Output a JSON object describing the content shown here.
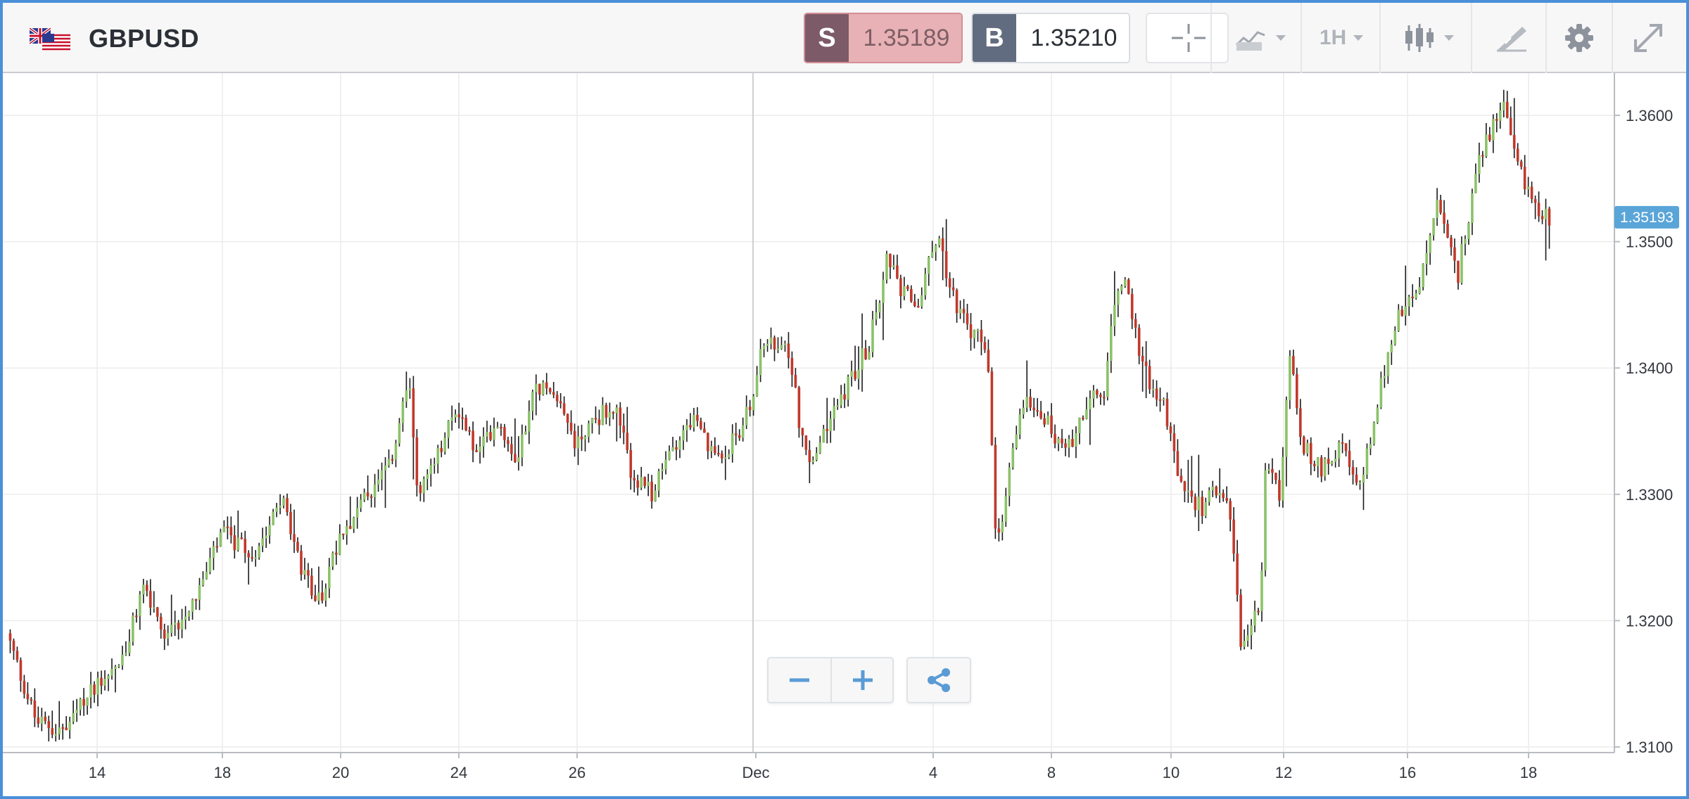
{
  "header": {
    "symbol": "GBPUSD",
    "flag_icon": "uk-us-flag-icon",
    "sell": {
      "letter": "S",
      "price": "1.35189"
    },
    "buy": {
      "letter": "B",
      "price": "1.35210"
    },
    "timeframe": "1H",
    "icons": [
      "crosshair-icon",
      "line-chart-type-icon",
      "candlestick-icon",
      "draw-tools-icon",
      "gear-icon",
      "fullscreen-icon"
    ]
  },
  "controls": {
    "icons": [
      "zoom-out-icon",
      "zoom-in-icon",
      "share-icon"
    ]
  },
  "colors": {
    "up": "#8cc26a",
    "down": "#c0392b",
    "wick": "#1a1a1a",
    "current_price_bg": "#5aa5d8",
    "grid": "#ececec"
  },
  "chart_data": {
    "type": "candlestick",
    "series_name": "GBPUSD",
    "interval": "1H",
    "current_price": "1.35193",
    "ylim": [
      1.31,
      1.363
    ],
    "y_ticks": [
      "1.3100",
      "1.3200",
      "1.3300",
      "1.3400",
      "1.3500",
      "1.3600"
    ],
    "x_ticks": [
      "14",
      "18",
      "20",
      "24",
      "26",
      "Dec",
      "4",
      "8",
      "10",
      "12",
      "16",
      "18"
    ],
    "grid": true,
    "legend": "none",
    "price_path": [
      {
        "t": 0,
        "p": 1.319
      },
      {
        "t": 1.5,
        "p": 1.312
      },
      {
        "t": 3,
        "p": 1.3112
      },
      {
        "t": 4.5,
        "p": 1.315
      },
      {
        "t": 6,
        "p": 1.317
      },
      {
        "t": 7,
        "p": 1.323
      },
      {
        "t": 8,
        "p": 1.318
      },
      {
        "t": 10,
        "p": 1.323
      },
      {
        "t": 11,
        "p": 1.327
      },
      {
        "t": 12.5,
        "p": 1.325
      },
      {
        "t": 14,
        "p": 1.33
      },
      {
        "t": 15,
        "p": 1.324
      },
      {
        "t": 16,
        "p": 1.3215
      },
      {
        "t": 17,
        "p": 1.327
      },
      {
        "t": 18.5,
        "p": 1.33
      },
      {
        "t": 19.5,
        "p": 1.332
      },
      {
        "t": 20.5,
        "p": 1.339
      },
      {
        "t": 21,
        "p": 1.33
      },
      {
        "t": 22,
        "p": 1.333
      },
      {
        "t": 23,
        "p": 1.337
      },
      {
        "t": 24,
        "p": 1.333
      },
      {
        "t": 25,
        "p": 1.336
      },
      {
        "t": 26,
        "p": 1.333
      },
      {
        "t": 27,
        "p": 1.3385
      },
      {
        "t": 28,
        "p": 1.3385
      },
      {
        "t": 29,
        "p": 1.334
      },
      {
        "t": 30,
        "p": 1.336
      },
      {
        "t": 31,
        "p": 1.337
      },
      {
        "t": 32,
        "p": 1.331
      },
      {
        "t": 33,
        "p": 1.33
      },
      {
        "t": 34,
        "p": 1.334
      },
      {
        "t": 35,
        "p": 1.336
      },
      {
        "t": 36,
        "p": 1.333
      },
      {
        "t": 37,
        "p": 1.334
      },
      {
        "t": 38,
        "p": 1.337
      },
      {
        "t": 38.5,
        "p": 1.342
      },
      {
        "t": 40,
        "p": 1.341
      },
      {
        "t": 40.5,
        "p": 1.335
      },
      {
        "t": 41,
        "p": 1.332
      },
      {
        "t": 42,
        "p": 1.336
      },
      {
        "t": 43,
        "p": 1.339
      },
      {
        "t": 44,
        "p": 1.342
      },
      {
        "t": 45,
        "p": 1.349
      },
      {
        "t": 45.5,
        "p": 1.346
      },
      {
        "t": 46.5,
        "p": 1.345
      },
      {
        "t": 47.5,
        "p": 1.351
      },
      {
        "t": 48,
        "p": 1.347
      },
      {
        "t": 49,
        "p": 1.343
      },
      {
        "t": 50,
        "p": 1.342
      },
      {
        "t": 50.5,
        "p": 1.325
      },
      {
        "t": 51.5,
        "p": 1.335
      },
      {
        "t": 52,
        "p": 1.338
      },
      {
        "t": 53,
        "p": 1.336
      },
      {
        "t": 54,
        "p": 1.333
      },
      {
        "t": 55,
        "p": 1.337
      },
      {
        "t": 56,
        "p": 1.338
      },
      {
        "t": 56.5,
        "p": 1.345
      },
      {
        "t": 57,
        "p": 1.347
      },
      {
        "t": 58,
        "p": 1.34
      },
      {
        "t": 59,
        "p": 1.337
      },
      {
        "t": 60,
        "p": 1.33
      },
      {
        "t": 61,
        "p": 1.329
      },
      {
        "t": 62,
        "p": 1.331
      },
      {
        "t": 62.5,
        "p": 1.327
      },
      {
        "t": 63,
        "p": 1.317
      },
      {
        "t": 64,
        "p": 1.322
      },
      {
        "t": 64.2,
        "p": 1.332
      },
      {
        "t": 65,
        "p": 1.33
      },
      {
        "t": 65.5,
        "p": 1.342
      },
      {
        "t": 66,
        "p": 1.334
      },
      {
        "t": 67,
        "p": 1.332
      },
      {
        "t": 68,
        "p": 1.334
      },
      {
        "t": 69,
        "p": 1.33
      },
      {
        "t": 70,
        "p": 1.338
      },
      {
        "t": 71,
        "p": 1.344
      },
      {
        "t": 72,
        "p": 1.346
      },
      {
        "t": 73,
        "p": 1.353
      },
      {
        "t": 74,
        "p": 1.347
      },
      {
        "t": 75,
        "p": 1.356
      },
      {
        "t": 76,
        "p": 1.36
      },
      {
        "t": 76.5,
        "p": 1.361
      },
      {
        "t": 77,
        "p": 1.356
      },
      {
        "t": 78,
        "p": 1.353
      },
      {
        "t": 78.7,
        "p": 1.3519
      }
    ]
  }
}
